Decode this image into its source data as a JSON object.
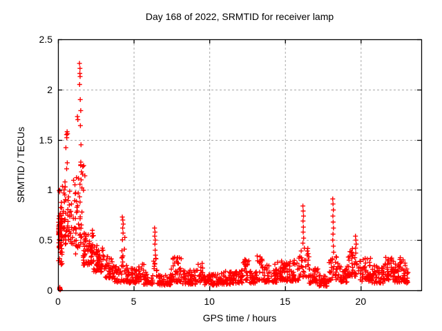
{
  "chart_data": {
    "type": "scatter",
    "title": "Day 168 of 2022, SRMTID for receiver lamp",
    "xlabel": "GPS time / hours",
    "ylabel": "SRMTID / TECUs",
    "xlim": [
      0,
      24
    ],
    "ylim": [
      0,
      2.5
    ],
    "xticks": [
      0,
      5,
      10,
      15,
      20
    ],
    "xtick_labels": [
      "0",
      "5",
      "10",
      "15",
      "20"
    ],
    "yticks": [
      0,
      0.5,
      1,
      1.5,
      2,
      2.5
    ],
    "ytick_labels": [
      "0",
      "0.5",
      "1",
      "1.5",
      "2",
      "2.5"
    ],
    "grid": true,
    "grid_color": "#a8a8a8",
    "background_color": "#ffffff",
    "text_color": "#000000",
    "marker": {
      "shape": "plus",
      "color": "#ff0000",
      "size": 7
    },
    "seed": 20220617,
    "points": [
      [
        0.1,
        0.01
      ],
      [
        0.13,
        0.02
      ],
      [
        0.16,
        0.01
      ],
      [
        0.12,
        0.03
      ],
      [
        0.14,
        0.005
      ],
      [
        0.11,
        0.02
      ],
      [
        0.4,
        1.0
      ],
      [
        0.46,
        1.08
      ],
      [
        0.48,
        1.03
      ],
      [
        0.45,
        0.95
      ],
      [
        0.5,
        0.9
      ],
      [
        0.42,
        0.88
      ],
      [
        0.52,
        1.42
      ],
      [
        0.56,
        1.55
      ],
      [
        0.6,
        1.58
      ],
      [
        0.63,
        1.56
      ],
      [
        0.58,
        1.52
      ],
      [
        0.61,
        1.27
      ],
      [
        0.57,
        1.21
      ],
      [
        0.7,
        0.93
      ],
      [
        0.75,
        0.85
      ],
      [
        1.42,
        2.26
      ],
      [
        1.45,
        2.21
      ],
      [
        1.44,
        2.16
      ],
      [
        1.46,
        2.13
      ],
      [
        1.43,
        2.05
      ],
      [
        1.47,
        1.9
      ],
      [
        1.5,
        1.79
      ],
      [
        1.28,
        1.73
      ],
      [
        1.31,
        1.7
      ],
      [
        1.48,
        1.64
      ],
      [
        1.52,
        1.45
      ],
      [
        1.5,
        1.25
      ],
      [
        1.55,
        1.18
      ],
      [
        1.53,
        1.1
      ],
      [
        1.58,
        1.02
      ],
      [
        4.25,
        0.73
      ],
      [
        4.28,
        0.7
      ],
      [
        4.31,
        0.66
      ],
      [
        4.27,
        0.62
      ],
      [
        4.3,
        0.57
      ],
      [
        6.38,
        0.62
      ],
      [
        6.41,
        0.58
      ],
      [
        6.39,
        0.54
      ],
      [
        6.43,
        0.5
      ],
      [
        6.4,
        0.46
      ],
      [
        6.42,
        0.4
      ],
      [
        6.44,
        0.35
      ],
      [
        16.18,
        0.84
      ],
      [
        16.2,
        0.79
      ],
      [
        16.22,
        0.74
      ],
      [
        16.19,
        0.69
      ],
      [
        16.21,
        0.63
      ],
      [
        16.2,
        0.58
      ],
      [
        16.23,
        0.52
      ],
      [
        16.18,
        0.47
      ],
      [
        18.15,
        0.91
      ],
      [
        18.17,
        0.86
      ],
      [
        18.19,
        0.8
      ],
      [
        18.16,
        0.74
      ],
      [
        18.18,
        0.68
      ],
      [
        18.2,
        0.62
      ],
      [
        18.17,
        0.56
      ],
      [
        18.15,
        0.5
      ],
      [
        18.19,
        0.44
      ],
      [
        18.21,
        0.38
      ],
      [
        19.65,
        0.54
      ],
      [
        19.68,
        0.5
      ],
      [
        19.7,
        0.46
      ],
      [
        19.66,
        0.42
      ]
    ],
    "bands": [
      [
        0.03,
        0.28,
        0.44,
        0.78,
        55,
        1.0
      ],
      [
        0.03,
        0.28,
        0.25,
        0.44,
        14,
        1.0
      ],
      [
        0.04,
        0.3,
        0.8,
        1.05,
        7,
        1.0
      ],
      [
        0.3,
        0.9,
        0.45,
        0.8,
        38,
        1.2
      ],
      [
        0.35,
        0.9,
        0.8,
        1.0,
        6,
        1.0
      ],
      [
        0.95,
        1.45,
        0.35,
        1.15,
        32,
        1.3
      ],
      [
        1.4,
        1.6,
        0.45,
        1.0,
        12,
        1.0
      ],
      [
        1.45,
        1.8,
        0.95,
        1.3,
        8,
        1.0
      ],
      [
        1.65,
        2.35,
        0.25,
        0.6,
        60,
        1.3
      ],
      [
        2.35,
        3.0,
        0.18,
        0.45,
        50,
        1.4
      ],
      [
        3.0,
        3.7,
        0.12,
        0.35,
        45,
        1.6
      ],
      [
        3.7,
        4.6,
        0.08,
        0.25,
        45,
        1.5
      ],
      [
        4.18,
        4.42,
        0.28,
        0.55,
        8,
        1.0
      ],
      [
        4.6,
        5.35,
        0.07,
        0.22,
        45,
        1.6
      ],
      [
        5.3,
        5.7,
        0.1,
        0.27,
        16,
        1.2
      ],
      [
        5.65,
        6.3,
        0.06,
        0.18,
        40,
        1.5
      ],
      [
        6.3,
        6.55,
        0.14,
        0.32,
        10,
        1.0
      ],
      [
        6.55,
        7.45,
        0.05,
        0.16,
        50,
        1.4
      ],
      [
        7.45,
        8.2,
        0.08,
        0.34,
        48,
        2.0
      ],
      [
        8.2,
        9.1,
        0.06,
        0.2,
        50,
        1.7
      ],
      [
        9.1,
        9.7,
        0.08,
        0.27,
        30,
        1.8
      ],
      [
        9.7,
        10.6,
        0.05,
        0.16,
        50,
        1.4
      ],
      [
        10.6,
        11.6,
        0.06,
        0.19,
        55,
        1.6
      ],
      [
        11.6,
        12.2,
        0.07,
        0.2,
        35,
        1.5
      ],
      [
        12.2,
        12.65,
        0.1,
        0.31,
        22,
        1.7
      ],
      [
        12.65,
        13.15,
        0.07,
        0.2,
        30,
        1.4
      ],
      [
        13.15,
        13.65,
        0.1,
        0.38,
        25,
        2.0
      ],
      [
        13.65,
        14.5,
        0.08,
        0.28,
        50,
        1.8
      ],
      [
        14.5,
        15.1,
        0.1,
        0.3,
        35,
        1.8
      ],
      [
        15.1,
        15.9,
        0.09,
        0.3,
        45,
        1.8
      ],
      [
        15.9,
        16.6,
        0.13,
        0.45,
        35,
        1.8
      ],
      [
        16.6,
        17.2,
        0.07,
        0.22,
        35,
        1.5
      ],
      [
        17.2,
        17.9,
        0.04,
        0.15,
        35,
        1.3
      ],
      [
        17.9,
        18.6,
        0.1,
        0.35,
        35,
        1.8
      ],
      [
        18.6,
        19.1,
        0.08,
        0.24,
        30,
        1.5
      ],
      [
        19.1,
        19.95,
        0.14,
        0.42,
        45,
        1.6
      ],
      [
        19.95,
        20.75,
        0.09,
        0.32,
        45,
        1.7
      ],
      [
        20.75,
        21.5,
        0.07,
        0.25,
        45,
        1.5
      ],
      [
        21.5,
        22.2,
        0.1,
        0.33,
        45,
        1.6
      ],
      [
        22.2,
        22.95,
        0.08,
        0.33,
        50,
        1.6
      ],
      [
        22.85,
        23.15,
        0.07,
        0.22,
        20,
        1.3
      ]
    ]
  }
}
